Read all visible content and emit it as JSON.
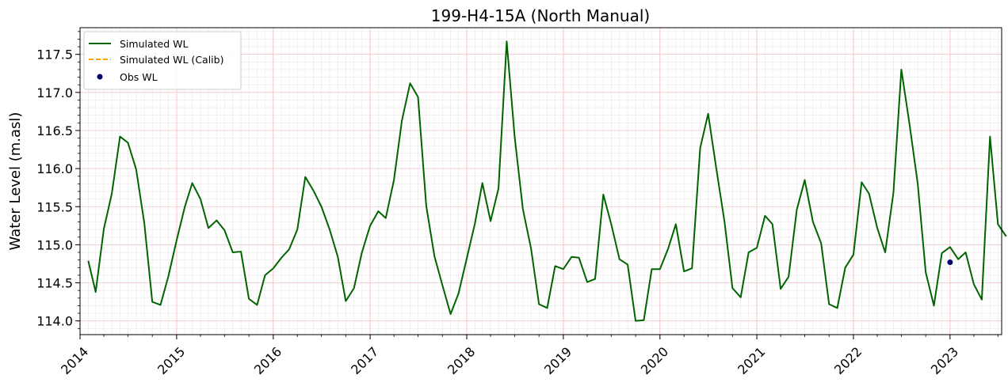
{
  "chart_data": {
    "type": "line",
    "title": "199-H4-15A (North Manual)",
    "xlabel": "",
    "ylabel": "Water Level (m.asl)",
    "xlim": [
      "2014-01-01",
      "2023-07-15"
    ],
    "ylim": [
      113.82,
      117.85
    ],
    "x_ticks": [
      "2014",
      "2015",
      "2016",
      "2017",
      "2018",
      "2019",
      "2020",
      "2021",
      "2022",
      "2023"
    ],
    "y_ticks": [
      "114.0",
      "114.5",
      "115.0",
      "115.5",
      "116.0",
      "116.5",
      "117.0",
      "117.5"
    ],
    "y_tick_values": [
      114.0,
      114.5,
      115.0,
      115.5,
      116.0,
      116.5,
      117.0,
      117.5
    ],
    "grid": true,
    "legend_position": "top-left",
    "colors": {
      "simulated": "#006400",
      "calib": "#ffa500",
      "obs": "#00006e",
      "major_grid": "#f4c6c6",
      "minor_grid": "#e8e8e8"
    },
    "legend": [
      {
        "label": "Simulated WL",
        "style": "solid-line",
        "color": "#006400"
      },
      {
        "label": "Simulated WL (Calib)",
        "style": "dashed-line",
        "color": "#ffa500"
      },
      {
        "label": "Obs WL",
        "style": "dot",
        "color": "#00006e"
      }
    ],
    "series": [
      {
        "name": "Simulated WL",
        "style": "line",
        "color": "#006400",
        "x": [
          "2014-02",
          "2014-03",
          "2014-04",
          "2014-05",
          "2014-06",
          "2014-07",
          "2014-08",
          "2014-09",
          "2014-10",
          "2014-11",
          "2014-12",
          "2015-01",
          "2015-02",
          "2015-03",
          "2015-04",
          "2015-05",
          "2015-06",
          "2015-07",
          "2015-08",
          "2015-09",
          "2015-10",
          "2015-11",
          "2015-12",
          "2016-01",
          "2016-02",
          "2016-03",
          "2016-04",
          "2016-05",
          "2016-06",
          "2016-07",
          "2016-08",
          "2016-09",
          "2016-10",
          "2016-11",
          "2016-12",
          "2017-01",
          "2017-02",
          "2017-03",
          "2017-04",
          "2017-05",
          "2017-06",
          "2017-07",
          "2017-08",
          "2017-09",
          "2017-10",
          "2017-11",
          "2017-12",
          "2018-01",
          "2018-02",
          "2018-03",
          "2018-04",
          "2018-05",
          "2018-06",
          "2018-07",
          "2018-08",
          "2018-09",
          "2018-10",
          "2018-11",
          "2018-12",
          "2019-01",
          "2019-02",
          "2019-03",
          "2019-04",
          "2019-05",
          "2019-06",
          "2019-07",
          "2019-08",
          "2019-09",
          "2019-10",
          "2019-11",
          "2019-12",
          "2020-01",
          "2020-02",
          "2020-03",
          "2020-04",
          "2020-05",
          "2020-06",
          "2020-07",
          "2020-08",
          "2020-09",
          "2020-10",
          "2020-11",
          "2020-12",
          "2021-01",
          "2021-02",
          "2021-03",
          "2021-04",
          "2021-05",
          "2021-06",
          "2021-07",
          "2021-08",
          "2021-09",
          "2021-10",
          "2021-11",
          "2021-12",
          "2022-01",
          "2022-02",
          "2022-03",
          "2022-04",
          "2022-05",
          "2022-06",
          "2022-07",
          "2022-08",
          "2022-09",
          "2022-10",
          "2022-11",
          "2022-12",
          "2023-01",
          "2023-02",
          "2023-03",
          "2023-04",
          "2023-05",
          "2023-06",
          "2023-07",
          "2023-08"
        ],
        "values": [
          114.79,
          114.38,
          115.21,
          115.67,
          116.42,
          116.34,
          115.99,
          115.28,
          114.25,
          114.21,
          114.59,
          115.06,
          115.5,
          115.81,
          115.6,
          115.22,
          115.32,
          115.19,
          114.9,
          114.91,
          114.29,
          114.21,
          114.6,
          114.69,
          114.83,
          114.94,
          115.2,
          115.89,
          115.71,
          115.5,
          115.2,
          114.84,
          114.26,
          114.43,
          114.9,
          115.25,
          115.44,
          115.35,
          115.85,
          116.63,
          117.12,
          116.94,
          115.51,
          114.85,
          114.47,
          114.09,
          114.36,
          114.82,
          115.28,
          115.81,
          115.31,
          115.74,
          117.67,
          116.42,
          115.47,
          114.95,
          114.22,
          114.17,
          114.72,
          114.68,
          114.84,
          114.83,
          114.51,
          114.55,
          115.66,
          115.27,
          114.81,
          114.74,
          114.0,
          114.01,
          114.68,
          114.68,
          114.95,
          115.27,
          114.65,
          114.69,
          116.27,
          116.72,
          116.0,
          115.3,
          114.43,
          114.31,
          114.9,
          114.96,
          115.38,
          115.27,
          114.42,
          114.58,
          115.46,
          115.85,
          115.3,
          115.02,
          114.22,
          114.17,
          114.7,
          114.87,
          115.82,
          115.67,
          115.22,
          114.9,
          115.68,
          117.3,
          116.58,
          115.8,
          114.64,
          114.2,
          114.89,
          114.97,
          114.81,
          114.9,
          114.48,
          114.28,
          116.42,
          115.27,
          115.11
        ]
      },
      {
        "name": "Simulated WL (Calib)",
        "style": "dashed-line",
        "color": "#ffa500",
        "x": [],
        "values": []
      },
      {
        "name": "Obs WL",
        "style": "scatter",
        "color": "#00006e",
        "x": [
          "2023-01"
        ],
        "values": [
          114.77
        ]
      }
    ]
  }
}
